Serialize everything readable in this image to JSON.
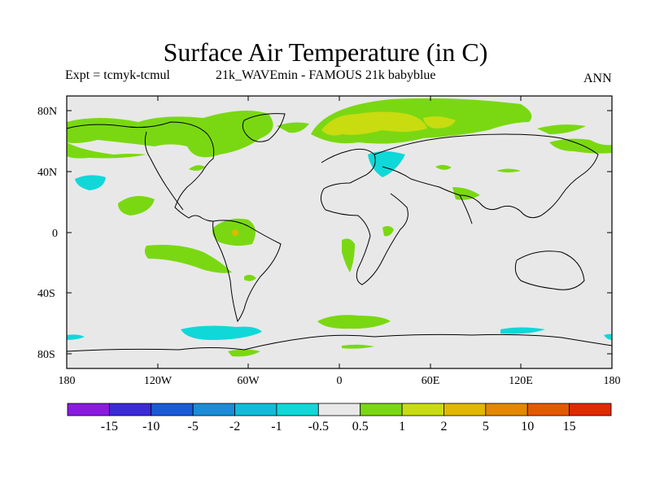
{
  "header": {
    "title": "Surface Air Temperature (in C)",
    "experiment": "Expt = tcmyk-tcmul",
    "experiment_name": "21k_WAVEmin - FAMOUS 21k babyblue",
    "season": "ANN"
  },
  "map": {
    "projection": "equirectangular",
    "lon_range": [
      -180,
      180
    ],
    "lat_range": [
      -90,
      90
    ],
    "x_ticks": [
      "180",
      "120W",
      "60W",
      "0",
      "60E",
      "120E",
      "180"
    ],
    "y_ticks": [
      "80N",
      "40N",
      "0",
      "40S",
      "80S"
    ],
    "background_color": "#e8e8e8"
  },
  "colorbar": {
    "colors": [
      "#8a1ae0",
      "#3a2ad8",
      "#1a5ad8",
      "#1a8cd8",
      "#12bcd8",
      "#10d8d8",
      "#e8e8e8",
      "#7ad812",
      "#c8dc10",
      "#e0b800",
      "#e48800",
      "#e45800",
      "#e02a00"
    ],
    "labels": [
      "-15",
      "-10",
      "-5",
      "-2",
      "-1",
      "-0.5",
      "0.5",
      "1",
      "2",
      "5",
      "10",
      "15"
    ]
  }
}
